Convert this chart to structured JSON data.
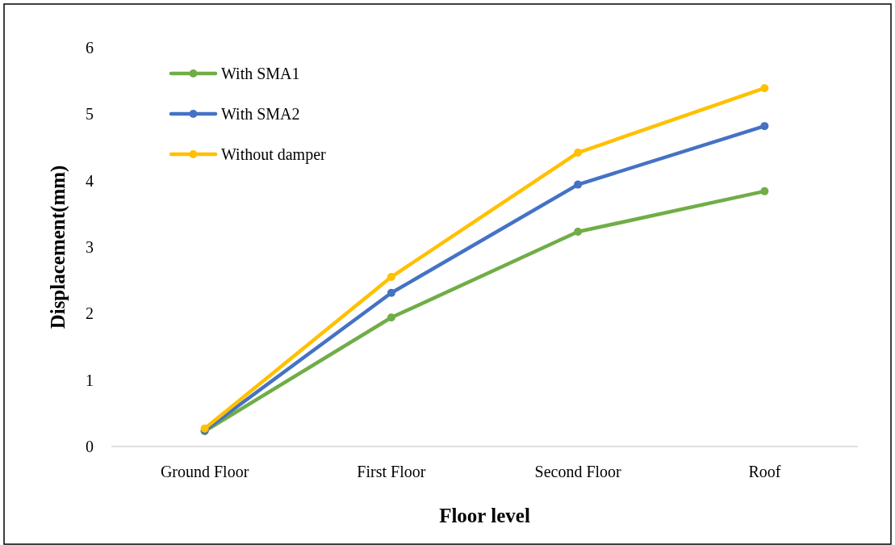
{
  "chart_data": {
    "type": "line",
    "xlabel": "Floor level",
    "ylabel": "Displacement(mm)",
    "categories": [
      "Ground Floor",
      "First Floor",
      "Second Floor",
      "Roof"
    ],
    "series": [
      {
        "name": "With SMA1",
        "color": "#70ad47",
        "values": [
          0.23,
          1.94,
          3.23,
          3.84
        ]
      },
      {
        "name": "With SMA2",
        "color": "#4472c4",
        "values": [
          0.24,
          2.31,
          3.94,
          4.82
        ]
      },
      {
        "name": "Without damper",
        "color": "#ffc000",
        "values": [
          0.27,
          2.55,
          4.42,
          5.39
        ]
      }
    ],
    "ylim": [
      0,
      6
    ],
    "yticks": [
      0,
      1,
      2,
      3,
      4,
      5,
      6
    ],
    "grid": false,
    "legend": "top left",
    "marker": "circle",
    "line_style": "solid"
  }
}
